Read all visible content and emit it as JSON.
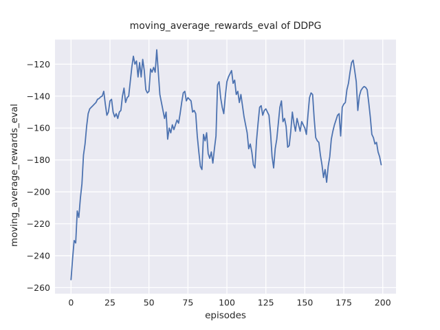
{
  "chart_data": {
    "type": "line",
    "title": "moving_average_rewards_eval of DDPG",
    "xlabel": "episodes",
    "ylabel": "moving_average_rewards_eval",
    "legend": null,
    "grid": true,
    "style": "seaborn-darkgrid",
    "axes_bg_color": "#eaeaf2",
    "grid_color": "#ffffff",
    "line_color": "#4c72b0",
    "text_color": "#262626",
    "x_ticks": [
      0,
      25,
      50,
      75,
      100,
      125,
      150,
      175,
      200
    ],
    "y_ticks": [
      -260,
      -240,
      -220,
      -200,
      -180,
      -160,
      -140,
      -120
    ],
    "xlim": [
      -10.28,
      208.5
    ],
    "ylim": [
      -263.8,
      -104.6
    ],
    "x_start": 0,
    "x_step": 1,
    "values": [
      -255,
      -242,
      -230.5,
      -232,
      -212,
      -216,
      -204,
      -195,
      -177,
      -170,
      -159,
      -151,
      -148,
      -147,
      -146,
      -145,
      -144,
      -142,
      -141.5,
      -140.5,
      -140,
      -137,
      -145,
      -152,
      -150,
      -143,
      -142,
      -150,
      -153,
      -151,
      -154,
      -150,
      -149,
      -140,
      -135,
      -144,
      -141,
      -140,
      -131,
      -122,
      -115,
      -120,
      -118,
      -128,
      -119,
      -128,
      -117,
      -124,
      -136,
      -138,
      -137,
      -123,
      -125,
      -122,
      -125,
      -111,
      -125,
      -139,
      -144,
      -149,
      -154,
      -150,
      -167,
      -160,
      -163,
      -158,
      -161,
      -158,
      -155,
      -157,
      -151,
      -144,
      -138,
      -137,
      -143,
      -141,
      -142,
      -143,
      -150,
      -149,
      -151,
      -165,
      -175,
      -184,
      -186,
      -164,
      -168,
      -163,
      -176,
      -179,
      -175,
      -182,
      -173,
      -165,
      -133,
      -131,
      -141,
      -147,
      -151,
      -140,
      -131,
      -128,
      -126,
      -124,
      -132,
      -130,
      -139,
      -137,
      -144,
      -139,
      -146,
      -153,
      -158,
      -163,
      -173,
      -170,
      -175,
      -183,
      -185,
      -168,
      -157,
      -147,
      -146,
      -152,
      -149,
      -148,
      -150,
      -152,
      -163,
      -178,
      -185,
      -173,
      -167,
      -157,
      -147,
      -143,
      -156,
      -154,
      -159,
      -172,
      -171,
      -162,
      -150,
      -157,
      -162,
      -154,
      -158,
      -162,
      -156,
      -158,
      -160,
      -164,
      -152,
      -141,
      -138,
      -139,
      -154,
      -166,
      -168,
      -169,
      -177,
      -183,
      -191,
      -186,
      -194,
      -184,
      -178,
      -167,
      -162,
      -158,
      -155,
      -152,
      -151,
      -165,
      -147,
      -145,
      -144,
      -136,
      -132,
      -125,
      -119,
      -117.5,
      -124,
      -131,
      -149,
      -140,
      -136.5,
      -135,
      -134,
      -134.5,
      -136,
      -144,
      -153,
      -164,
      -166,
      -170,
      -169,
      -175,
      -178,
      -183
    ]
  }
}
